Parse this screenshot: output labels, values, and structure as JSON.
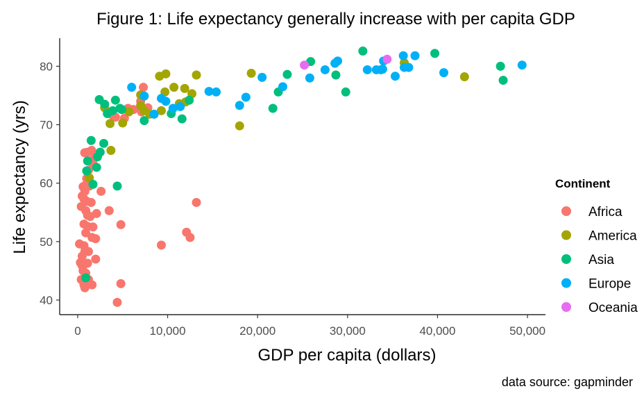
{
  "chart_data": {
    "type": "scatter",
    "title": "Figure 1: Life expectancy generally increase with per capita GDP",
    "xlabel": "GDP per capita (dollars)",
    "ylabel": "Life expectancy (yrs)",
    "caption": "data source: gapminder",
    "xlim": [
      -2000,
      52000
    ],
    "ylim": [
      37.5,
      84.8
    ],
    "x_ticks": [
      0,
      10000,
      20000,
      30000,
      40000,
      50000
    ],
    "x_tick_labels": [
      "0",
      "10,000",
      "20,000",
      "30,000",
      "40,000",
      "50,000"
    ],
    "y_ticks": [
      40,
      50,
      60,
      70,
      80
    ],
    "y_tick_labels": [
      "40",
      "50",
      "60",
      "70",
      "80"
    ],
    "grid": false,
    "legend": {
      "title": "Continent",
      "position": "right"
    },
    "series": [
      {
        "name": "Africa",
        "color": "#F8766D",
        "points": [
          [
            780,
            65.2
          ],
          [
            1100,
            65.3
          ],
          [
            1550,
            65.6
          ],
          [
            1800,
            64.2
          ],
          [
            1400,
            63.8
          ],
          [
            1700,
            63.3
          ],
          [
            1200,
            62.2
          ],
          [
            1000,
            60.8
          ],
          [
            600,
            59.4
          ],
          [
            900,
            59.7
          ],
          [
            1300,
            59.5
          ],
          [
            800,
            58.6
          ],
          [
            2600,
            58.6
          ],
          [
            500,
            57.8
          ],
          [
            700,
            57.3
          ],
          [
            1000,
            56.9
          ],
          [
            1500,
            56.7
          ],
          [
            13200,
            56.7
          ],
          [
            400,
            56.0
          ],
          [
            900,
            55.3
          ],
          [
            3500,
            55.3
          ],
          [
            2100,
            54.8
          ],
          [
            1100,
            54.5
          ],
          [
            1400,
            54.3
          ],
          [
            700,
            53.0
          ],
          [
            1100,
            52.6
          ],
          [
            4800,
            52.9
          ],
          [
            1700,
            52.5
          ],
          [
            900,
            51.5
          ],
          [
            12100,
            51.6
          ],
          [
            1600,
            50.7
          ],
          [
            2000,
            50.5
          ],
          [
            12500,
            50.7
          ],
          [
            200,
            49.6
          ],
          [
            700,
            49.3
          ],
          [
            1200,
            48.3
          ],
          [
            9300,
            49.4
          ],
          [
            800,
            48.3
          ],
          [
            500,
            47.5
          ],
          [
            2000,
            47.0
          ],
          [
            300,
            46.4
          ],
          [
            500,
            45.9
          ],
          [
            800,
            46.2
          ],
          [
            1100,
            46.3
          ],
          [
            600,
            45.0
          ],
          [
            900,
            44.6
          ],
          [
            400,
            43.5
          ],
          [
            1200,
            43.5
          ],
          [
            700,
            42.6
          ],
          [
            1600,
            42.6
          ],
          [
            4800,
            42.8
          ],
          [
            800,
            42.1
          ],
          [
            4400,
            39.6
          ],
          [
            7300,
            76.4
          ],
          [
            7000,
            74.0
          ],
          [
            7800,
            72.9
          ],
          [
            5600,
            72.8
          ],
          [
            6200,
            72.6
          ],
          [
            4200,
            71.3
          ],
          [
            3900,
            71.6
          ],
          [
            5200,
            71.1
          ],
          [
            7100,
            72.2
          ]
        ]
      },
      {
        "name": "America",
        "color": "#A3A500",
        "points": [
          [
            9100,
            78.3
          ],
          [
            9800,
            78.7
          ],
          [
            13200,
            78.5
          ],
          [
            19300,
            78.8
          ],
          [
            9700,
            75.6
          ],
          [
            10700,
            76.4
          ],
          [
            11900,
            76.2
          ],
          [
            12700,
            75.3
          ],
          [
            7000,
            75.1
          ],
          [
            36300,
            80.6
          ],
          [
            43000,
            78.2
          ],
          [
            3000,
            72.9
          ],
          [
            5700,
            72.2
          ],
          [
            7400,
            72.4
          ],
          [
            9300,
            72.4
          ],
          [
            8000,
            71.8
          ],
          [
            11300,
            73.6
          ],
          [
            12000,
            73.9
          ],
          [
            3600,
            70.2
          ],
          [
            5000,
            70.3
          ],
          [
            3700,
            65.6
          ],
          [
            1300,
            60.9
          ],
          [
            18000,
            69.8
          ],
          [
            7000,
            73.3
          ]
        ]
      },
      {
        "name": "Asia",
        "color": "#00BF7D",
        "points": [
          [
            31700,
            82.6
          ],
          [
            39700,
            82.2
          ],
          [
            47000,
            80.0
          ],
          [
            47300,
            77.6
          ],
          [
            25900,
            80.8
          ],
          [
            28700,
            78.5
          ],
          [
            23300,
            78.6
          ],
          [
            22300,
            75.6
          ],
          [
            29800,
            75.6
          ],
          [
            21700,
            72.8
          ],
          [
            2400,
            74.3
          ],
          [
            3000,
            73.5
          ],
          [
            4200,
            74.2
          ],
          [
            3300,
            71.9
          ],
          [
            3900,
            72.4
          ],
          [
            4700,
            72.8
          ],
          [
            4900,
            72.6
          ],
          [
            7400,
            70.7
          ],
          [
            11600,
            71.0
          ],
          [
            12400,
            74.2
          ],
          [
            10400,
            71.9
          ],
          [
            1500,
            67.3
          ],
          [
            2900,
            66.8
          ],
          [
            2500,
            65.3
          ],
          [
            2200,
            64.5
          ],
          [
            1100,
            63.8
          ],
          [
            1000,
            62.1
          ],
          [
            2100,
            62.7
          ],
          [
            1700,
            59.8
          ],
          [
            4400,
            59.5
          ],
          [
            900,
            43.8
          ]
        ]
      },
      {
        "name": "Europe",
        "color": "#00B0F6",
        "points": [
          [
            6000,
            76.4
          ],
          [
            7400,
            74.9
          ],
          [
            8500,
            71.8
          ],
          [
            9300,
            74.5
          ],
          [
            9800,
            74.0
          ],
          [
            10600,
            72.8
          ],
          [
            11400,
            73.1
          ],
          [
            14600,
            75.7
          ],
          [
            15400,
            75.6
          ],
          [
            18000,
            73.3
          ],
          [
            18700,
            74.7
          ],
          [
            20500,
            78.1
          ],
          [
            22800,
            76.5
          ],
          [
            25800,
            78.0
          ],
          [
            27500,
            79.4
          ],
          [
            28600,
            80.5
          ],
          [
            28900,
            80.9
          ],
          [
            32200,
            79.4
          ],
          [
            33200,
            79.4
          ],
          [
            33700,
            79.4
          ],
          [
            34000,
            80.9
          ],
          [
            35300,
            78.3
          ],
          [
            36200,
            81.8
          ],
          [
            36300,
            79.8
          ],
          [
            36800,
            79.8
          ],
          [
            37500,
            81.8
          ],
          [
            40700,
            78.9
          ],
          [
            49400,
            80.2
          ],
          [
            33900,
            79.5
          ]
        ]
      },
      {
        "name": "Oceania",
        "color": "#E76BF3",
        "points": [
          [
            25200,
            80.2
          ],
          [
            34400,
            81.2
          ]
        ]
      }
    ]
  }
}
